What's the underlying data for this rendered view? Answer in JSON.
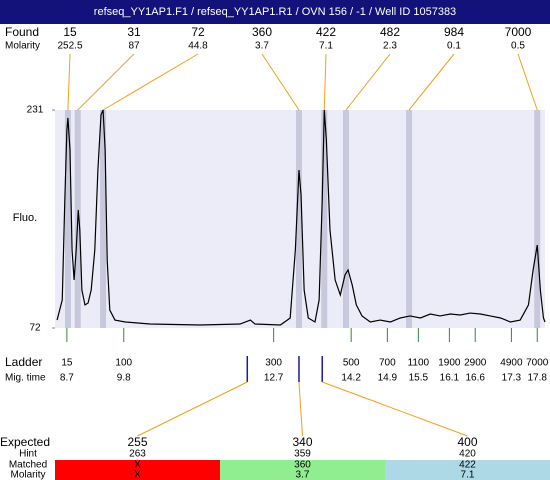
{
  "header": {
    "title": "refseq_YY1AP1.F1 / refseq_YY1AP1.R1 / OVN 156 / -1 / Well ID 1057383"
  },
  "chart_data": {
    "type": "line",
    "y_label": "Fluo.",
    "xlim": [
      8.47,
      17.95
    ],
    "ylim": [
      72,
      231
    ],
    "yticks": [
      72,
      231
    ],
    "x": [
      8.51,
      8.61,
      8.66,
      8.7,
      8.72,
      8.76,
      8.8,
      8.84,
      8.88,
      8.92,
      8.95,
      8.99,
      9.05,
      9.11,
      9.17,
      9.24,
      9.3,
      9.36,
      9.4,
      9.44,
      9.48,
      9.53,
      9.63,
      9.83,
      10.31,
      11.28,
      12.05,
      12.25,
      12.34,
      12.83,
      13.02,
      13.12,
      13.19,
      13.23,
      13.29,
      13.37,
      13.5,
      13.58,
      13.64,
      13.68,
      13.72,
      13.79,
      13.89,
      13.99,
      14.08,
      14.14,
      14.22,
      14.3,
      14.41,
      14.57,
      14.76,
      14.96,
      15.15,
      15.34,
      15.54,
      15.73,
      15.92,
      16.12,
      16.31,
      16.5,
      16.7,
      16.89,
      17.09,
      17.28,
      17.47,
      17.63,
      17.72,
      17.8,
      17.86,
      17.92,
      17.95
    ],
    "series": [
      {
        "color": "#000000",
        "values": [
          77.8,
          92.4,
          165.4,
          216.4,
          225.2,
          201.8,
          128.9,
          107.0,
          128.9,
          158.1,
          143.5,
          99.7,
          88.8,
          90.2,
          99.7,
          128.9,
          187.2,
          227.4,
          231,
          201.8,
          121.6,
          85.1,
          77.8,
          76.4,
          74.9,
          74.2,
          74.9,
          77.8,
          74.9,
          74.2,
          79.3,
          128.9,
          187.2,
          169.0,
          99.7,
          79.3,
          76.4,
          92.4,
          165.4,
          231,
          209.1,
          143.5,
          107.0,
          96.1,
          110.7,
          114.3,
          103.4,
          88.8,
          80.8,
          76.4,
          77.8,
          76.4,
          79.3,
          80.8,
          79.3,
          82.2,
          80.8,
          82.2,
          81.5,
          82.9,
          82.2,
          80.8,
          79.3,
          76.4,
          77.8,
          88.8,
          114.3,
          132.5,
          99.7,
          79.3,
          76.4
        ]
      }
    ],
    "found": {
      "label": "Found",
      "molarity_label": "Molarity",
      "color": "#f0a020",
      "band_color": "#c8c8dc",
      "sizes": [
        15,
        31,
        72,
        360,
        422,
        482,
        984,
        7000
      ],
      "molarity": [
        252.5,
        87,
        44.8,
        3.7,
        7.1,
        2.3,
        0.1,
        0.5
      ],
      "x": [
        8.72,
        8.91,
        9.4,
        13.19,
        13.68,
        14.1,
        15.32,
        17.8
      ]
    },
    "ladder": {
      "label": "Ladder",
      "time_label": "Mig. time",
      "color": "#2e8b2e",
      "sizes": [
        15,
        100,
        300,
        500,
        700,
        1100,
        1900,
        2900,
        4900,
        7000
      ],
      "x": [
        8.7,
        9.8,
        12.7,
        14.2,
        14.9,
        15.5,
        16.1,
        16.6,
        17.3,
        17.8
      ]
    },
    "expected": {
      "label": "Expected",
      "hint_label": "Hint",
      "matched_label": "Matched",
      "molarity_label": "Molarity",
      "hint_color": "#1a1aa0",
      "values": [
        255,
        340,
        400
      ],
      "hint": [
        263,
        359,
        420
      ],
      "hint_x": [
        12.19,
        13.19,
        13.64
      ],
      "matched": [
        "X",
        360,
        422
      ],
      "molarity": [
        "X",
        3.7,
        7.1
      ],
      "colors": [
        "#ff0000",
        "#90ee90",
        "#add8e6"
      ]
    }
  }
}
